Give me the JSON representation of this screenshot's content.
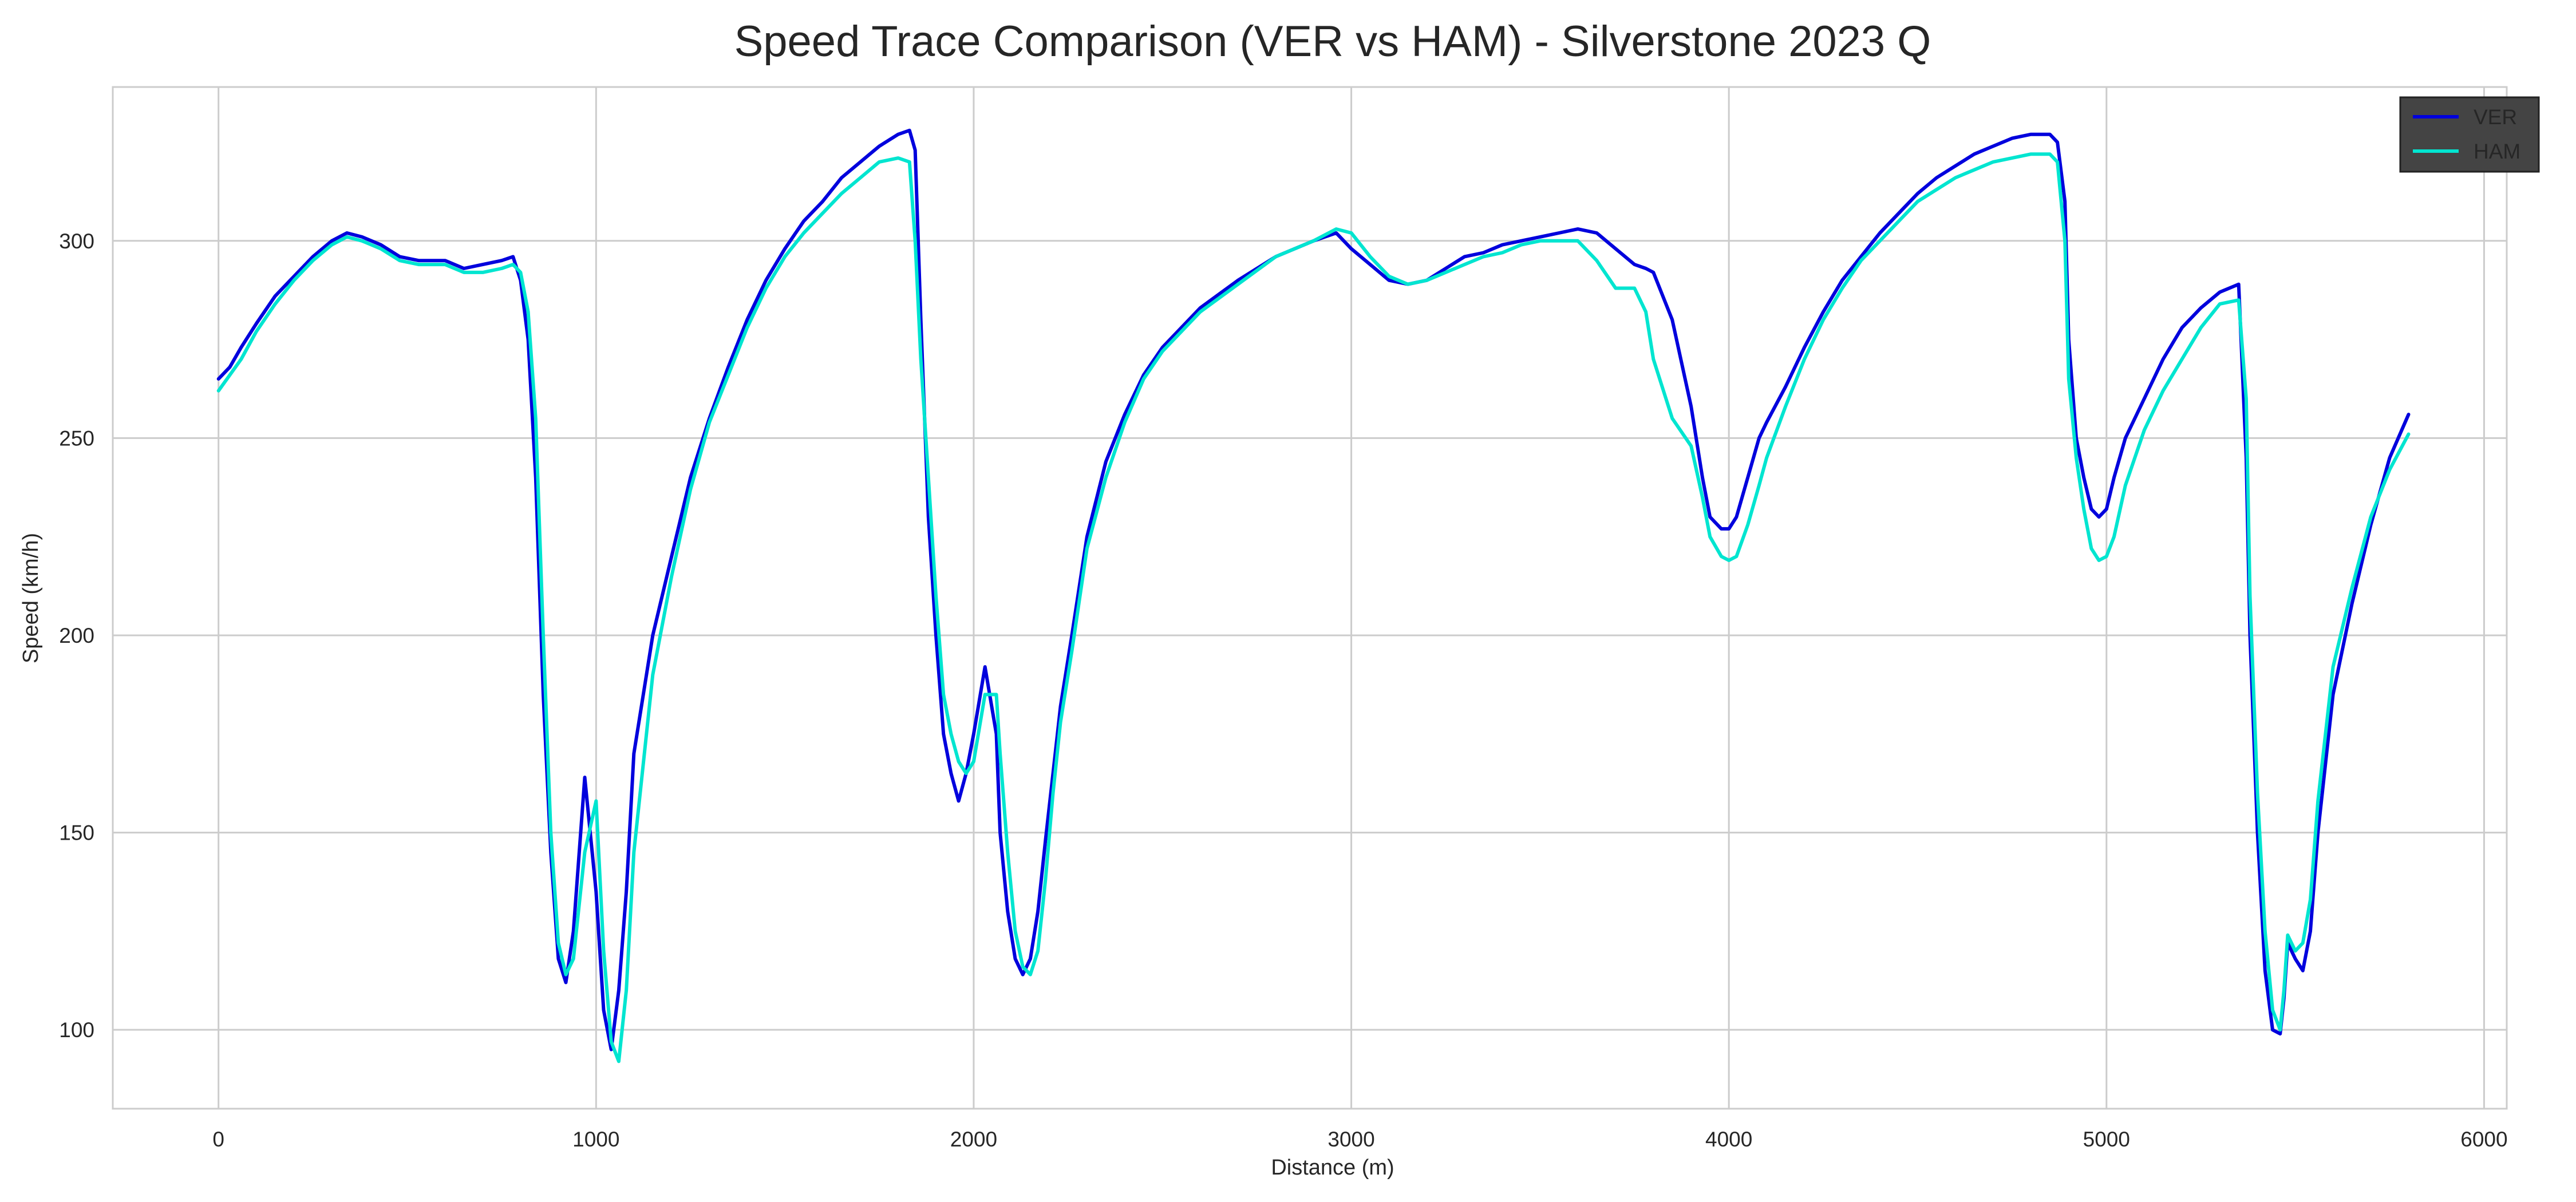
{
  "chart_data": {
    "type": "line",
    "title": "Speed Trace Comparison (VER vs HAM) - Silverstone 2023 Q",
    "xlabel": "Distance (m)",
    "ylabel": "Speed (km/h)",
    "xlim": [
      -280,
      6060
    ],
    "ylim": [
      80,
      339
    ],
    "xticks": [
      0,
      1000,
      2000,
      3000,
      4000,
      5000,
      6000
    ],
    "yticks": [
      100,
      150,
      200,
      250,
      300
    ],
    "grid": true,
    "legend": "top-right",
    "legend_background": "#444444",
    "series": [
      {
        "name": "VER",
        "color": "#0000dd",
        "x": [
          0,
          30,
          60,
          100,
          150,
          200,
          250,
          300,
          340,
          380,
          430,
          480,
          530,
          600,
          650,
          700,
          750,
          780,
          800,
          820,
          840,
          860,
          880,
          900,
          920,
          940,
          970,
          1000,
          1020,
          1040,
          1060,
          1080,
          1100,
          1150,
          1200,
          1250,
          1300,
          1350,
          1400,
          1450,
          1500,
          1550,
          1600,
          1650,
          1700,
          1750,
          1800,
          1830,
          1845,
          1860,
          1880,
          1900,
          1920,
          1940,
          1960,
          1980,
          2000,
          2030,
          2060,
          2070,
          2090,
          2110,
          2130,
          2150,
          2170,
          2190,
          2210,
          2230,
          2260,
          2300,
          2350,
          2400,
          2450,
          2500,
          2600,
          2700,
          2800,
          2900,
          2960,
          3000,
          3050,
          3100,
          3150,
          3200,
          3250,
          3300,
          3350,
          3400,
          3450,
          3500,
          3550,
          3600,
          3650,
          3700,
          3750,
          3780,
          3800,
          3850,
          3900,
          3930,
          3950,
          3980,
          4000,
          4020,
          4050,
          4080,
          4100,
          4150,
          4200,
          4250,
          4300,
          4350,
          4400,
          4450,
          4500,
          4550,
          4600,
          4650,
          4700,
          4750,
          4800,
          4850,
          4870,
          4890,
          4900,
          4920,
          4940,
          4960,
          4980,
          5000,
          5020,
          5050,
          5100,
          5150,
          5200,
          5250,
          5300,
          5350,
          5370,
          5380,
          5400,
          5420,
          5440,
          5460,
          5470,
          5480,
          5500,
          5520,
          5540,
          5560,
          5600,
          5650,
          5700,
          5750,
          5800
        ],
        "y": [
          265,
          268,
          273,
          279,
          286,
          291,
          296,
          300,
          302,
          301,
          299,
          296,
          295,
          295,
          293,
          294,
          295,
          296,
          290,
          275,
          240,
          185,
          145,
          118,
          112,
          125,
          164,
          135,
          105,
          95,
          110,
          135,
          170,
          200,
          220,
          240,
          255,
          268,
          280,
          290,
          298,
          305,
          310,
          316,
          320,
          324,
          327,
          328,
          323,
          280,
          230,
          200,
          175,
          165,
          158,
          165,
          175,
          192,
          175,
          150,
          130,
          118,
          114,
          118,
          130,
          148,
          165,
          182,
          200,
          225,
          244,
          256,
          266,
          273,
          283,
          290,
          296,
          300,
          302,
          298,
          294,
          290,
          289,
          290,
          293,
          296,
          297,
          299,
          300,
          301,
          302,
          303,
          302,
          298,
          294,
          293,
          292,
          280,
          258,
          240,
          230,
          227,
          227,
          230,
          240,
          250,
          254,
          263,
          273,
          282,
          290,
          296,
          302,
          307,
          312,
          316,
          319,
          322,
          324,
          326,
          327,
          327,
          325,
          310,
          275,
          250,
          240,
          232,
          230,
          232,
          240,
          250,
          260,
          270,
          278,
          283,
          287,
          289,
          245,
          200,
          150,
          115,
          100,
          99,
          108,
          122,
          118,
          115,
          125,
          150,
          185,
          208,
          228,
          245,
          256
        ]
      },
      {
        "name": "HAM",
        "color": "#00e5d0",
        "x": [
          0,
          30,
          60,
          100,
          150,
          200,
          250,
          300,
          340,
          380,
          430,
          480,
          530,
          600,
          650,
          700,
          750,
          780,
          800,
          820,
          840,
          860,
          880,
          900,
          920,
          940,
          970,
          1000,
          1020,
          1040,
          1060,
          1080,
          1100,
          1150,
          1200,
          1250,
          1300,
          1350,
          1400,
          1450,
          1500,
          1550,
          1600,
          1650,
          1700,
          1750,
          1800,
          1830,
          1845,
          1860,
          1880,
          1900,
          1920,
          1940,
          1960,
          1980,
          2000,
          2030,
          2060,
          2070,
          2090,
          2110,
          2130,
          2150,
          2170,
          2190,
          2210,
          2230,
          2260,
          2300,
          2350,
          2400,
          2450,
          2500,
          2600,
          2700,
          2800,
          2900,
          2960,
          3000,
          3050,
          3100,
          3150,
          3200,
          3250,
          3300,
          3350,
          3400,
          3450,
          3500,
          3550,
          3600,
          3650,
          3700,
          3750,
          3780,
          3800,
          3850,
          3900,
          3930,
          3950,
          3980,
          4000,
          4020,
          4050,
          4080,
          4100,
          4150,
          4200,
          4250,
          4300,
          4350,
          4400,
          4450,
          4500,
          4550,
          4600,
          4650,
          4700,
          4750,
          4800,
          4850,
          4870,
          4890,
          4900,
          4920,
          4940,
          4960,
          4980,
          5000,
          5020,
          5050,
          5100,
          5150,
          5200,
          5250,
          5300,
          5350,
          5370,
          5380,
          5400,
          5420,
          5440,
          5460,
          5470,
          5480,
          5500,
          5520,
          5540,
          5560,
          5600,
          5650,
          5700,
          5750,
          5800
        ],
        "y": [
          262,
          266,
          270,
          277,
          284,
          290,
          295,
          299,
          301,
          300,
          298,
          295,
          294,
          294,
          292,
          292,
          293,
          294,
          292,
          282,
          255,
          200,
          150,
          122,
          114,
          118,
          145,
          158,
          120,
          97,
          92,
          110,
          145,
          190,
          215,
          237,
          254,
          266,
          278,
          288,
          296,
          302,
          307,
          312,
          316,
          320,
          321,
          320,
          300,
          270,
          240,
          210,
          185,
          175,
          168,
          165,
          168,
          185,
          185,
          170,
          145,
          125,
          116,
          114,
          120,
          138,
          160,
          178,
          196,
          222,
          240,
          254,
          265,
          272,
          282,
          289,
          296,
          300,
          303,
          302,
          296,
          291,
          289,
          290,
          292,
          294,
          296,
          297,
          299,
          300,
          300,
          300,
          295,
          288,
          288,
          282,
          270,
          255,
          248,
          235,
          225,
          220,
          219,
          220,
          228,
          238,
          245,
          258,
          270,
          280,
          288,
          295,
          300,
          305,
          310,
          313,
          316,
          318,
          320,
          321,
          322,
          322,
          320,
          300,
          265,
          245,
          232,
          222,
          219,
          220,
          225,
          238,
          252,
          262,
          270,
          278,
          284,
          285,
          260,
          210,
          160,
          125,
          105,
          100,
          110,
          124,
          120,
          122,
          133,
          158,
          192,
          212,
          230,
          242,
          251
        ]
      }
    ]
  }
}
